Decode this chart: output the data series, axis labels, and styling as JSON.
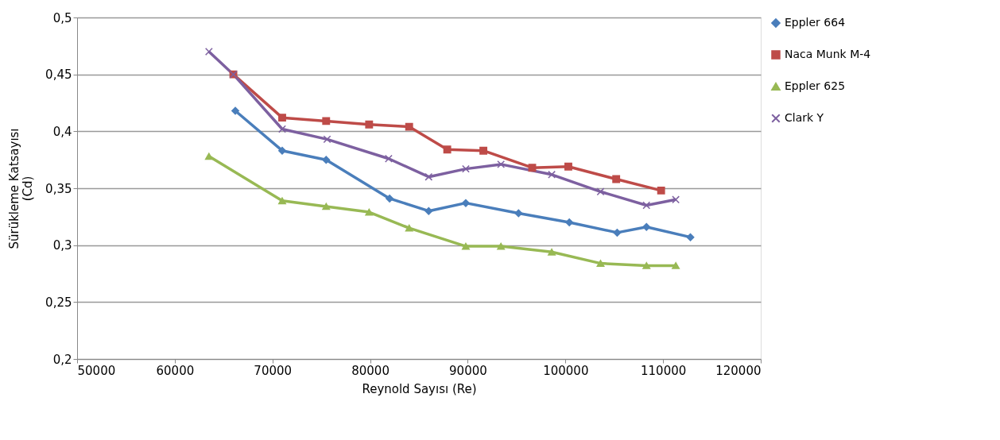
{
  "chart_data": {
    "type": "line",
    "xlabel": "Reynold Sayısı (Re)",
    "ylabel": "Sürükleme Katsayısı\n(Cd)",
    "xlim": [
      50000,
      120000
    ],
    "xticks": [
      50000,
      60000,
      70000,
      80000,
      90000,
      100000,
      110000,
      120000
    ],
    "ylim": [
      0.2,
      0.5
    ],
    "yticks": [
      {
        "value": 0.2,
        "label": "0,2"
      },
      {
        "value": 0.25,
        "label": "0,25"
      },
      {
        "value": 0.3,
        "label": "0,3"
      },
      {
        "value": 0.35,
        "label": "0,35"
      },
      {
        "value": 0.4,
        "label": "0,4"
      },
      {
        "value": 0.45,
        "label": "0,45"
      },
      {
        "value": 0.5,
        "label": "0,5"
      }
    ],
    "grid": "y",
    "legend": "right",
    "series": [
      {
        "name": "Eppler 664",
        "color": "#4a7ebb",
        "marker": "diamond",
        "x": [
          66200,
          71000,
          75500,
          82000,
          86000,
          89800,
          95200,
          100400,
          105300,
          108300,
          112800
        ],
        "values": [
          0.418,
          0.383,
          0.375,
          0.341,
          0.33,
          0.337,
          0.328,
          0.32,
          0.311,
          0.316,
          0.307
        ]
      },
      {
        "name": "Naca Munk M-4",
        "color": "#be4b48",
        "marker": "square",
        "x": [
          66000,
          71000,
          75500,
          79900,
          84000,
          87900,
          91600,
          96600,
          100300,
          105200,
          109800
        ],
        "values": [
          0.45,
          0.412,
          0.409,
          0.406,
          0.404,
          0.384,
          0.383,
          0.368,
          0.369,
          0.358,
          0.348
        ]
      },
      {
        "name": "Eppler 625",
        "color": "#98b954",
        "marker": "triangle",
        "x": [
          63500,
          71000,
          75500,
          79900,
          84000,
          89800,
          93400,
          98600,
          103600,
          108300,
          111300
        ],
        "values": [
          0.378,
          0.339,
          0.334,
          0.329,
          0.315,
          0.299,
          0.299,
          0.294,
          0.284,
          0.282,
          0.282
        ]
      },
      {
        "name": "Clark Y",
        "color": "#7d60a0",
        "marker": "cross",
        "x": [
          63500,
          66000,
          71000,
          75600,
          81900,
          86000,
          89800,
          93400,
          98600,
          103600,
          108300,
          111300
        ],
        "values": [
          0.47,
          0.45,
          0.402,
          0.393,
          0.376,
          0.36,
          0.367,
          0.371,
          0.362,
          0.347,
          0.335,
          0.34
        ]
      }
    ]
  }
}
